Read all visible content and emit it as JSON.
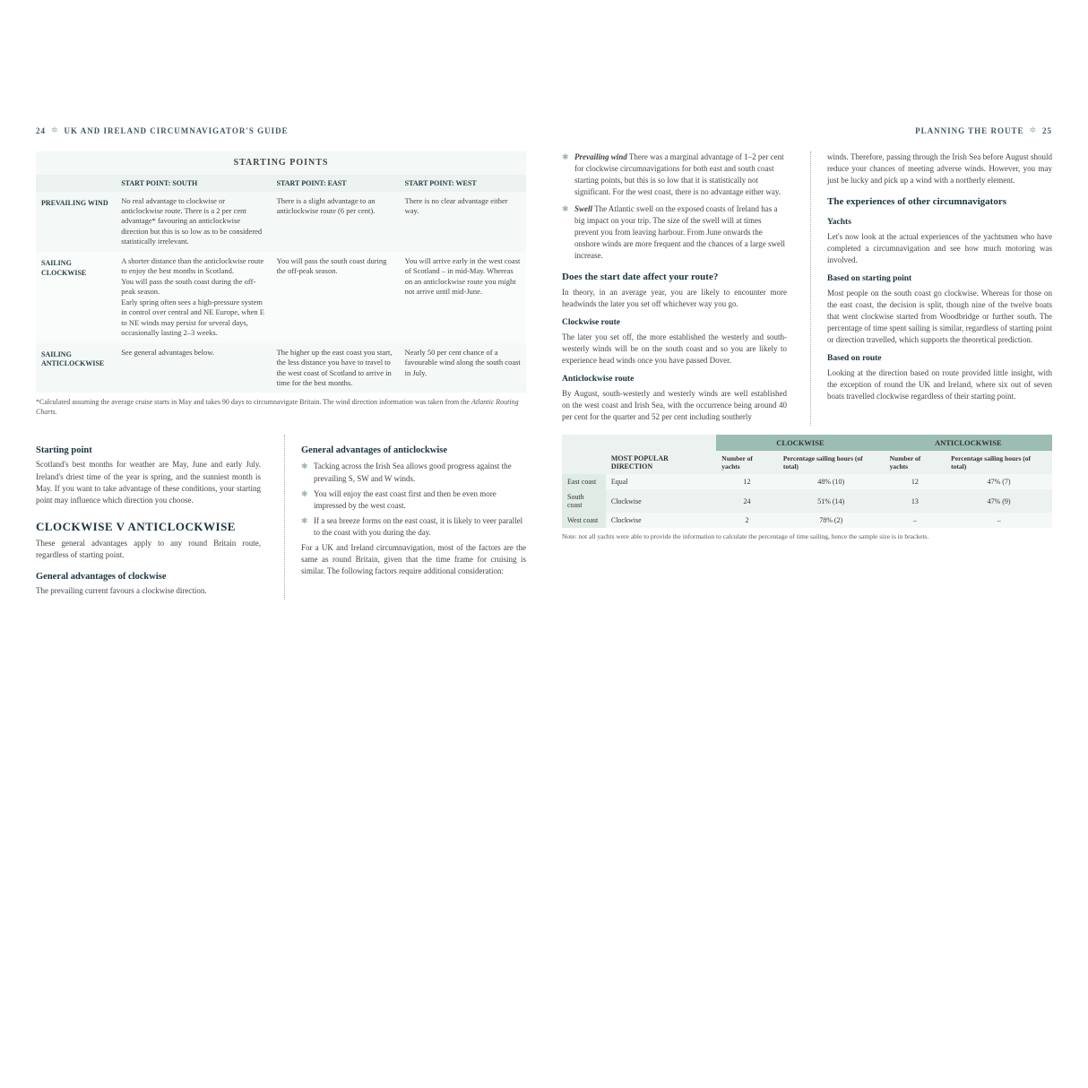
{
  "leftPage": {
    "pageNum": "24",
    "runTitle": "UK AND IRELAND CIRCUMNAVIGATOR'S GUIDE",
    "table1": {
      "banner": "STARTING POINTS",
      "cols": [
        "",
        "START POINT: SOUTH",
        "START POINT: EAST",
        "START POINT: WEST"
      ],
      "rows": [
        {
          "h": "PREVAILING WIND",
          "c": [
            "No real advantage to clockwise or anticlockwise route. There is a 2 per cent advantage* favouring an anticlockwise direction but this is so low as to be considered statistically irrelevant.",
            "There is a slight advantage to an anticlockwise route (6 per cent).",
            "There is no clear advantage either way."
          ]
        },
        {
          "h": "SAILING CLOCKWISE",
          "c": [
            "A shorter distance than the anticlockwise route to enjoy the best months in Scotland.\nYou will pass the south coast during the off-peak season.\nEarly spring often sees a high-pressure system in control over central and NE Europe, when E to NE winds may persist for several days, occasionally lasting 2–3 weeks.",
            "You will pass the south coast during the off-peak season.",
            "You will arrive early in the west coast of Scotland – in mid-May. Whereas on an anticlockwise route you might not arrive until mid-June."
          ]
        },
        {
          "h": "SAILING ANTICLOCKWISE",
          "c": [
            "See general advantages below.",
            "The higher up the east coast you start, the less distance you have to travel to the west coast of Scotland to arrive in time for the best months.",
            "Nearly 50 per cent chance of a favourable wind along the south coast in July."
          ]
        }
      ]
    },
    "footnote": "*Calculated assuming the average cruise starts in May and takes 90 days to circumnavigate Britain. The wind direction information was taken from the ",
    "footnoteItalic": "Atlantic Routing Charts.",
    "colL": {
      "h1": "Starting point",
      "p1": "Scotland's best months for weather are May, June and early July. Ireland's driest time of the year is spring, and the sunniest month is May. If you want to take advantage of these conditions, your starting point may influence which direction you choose.",
      "h2": "CLOCKWISE V ANTICLOCKWISE",
      "p2": "These general advantages apply to any round Britain route, regardless of starting point.",
      "h3": "General advantages of clockwise",
      "p3": "The prevailing current favours a clockwise direction."
    },
    "colR": {
      "h1": "General advantages of anticlockwise",
      "bullets": [
        "Tacking across the Irish Sea allows good progress against the prevailing S, SW and W winds.",
        "You will enjoy the east coast first and then be even more impressed by the west coast.",
        "If a sea breeze forms on the east coast, it is likely to veer parallel to the coast with you during the day."
      ],
      "p1": "For a UK and Ireland circumnavigation, most of the factors are the same as round Britain, given that the time frame for cruising is similar. The following factors require additional consideration:"
    }
  },
  "rightPage": {
    "pageNum": "25",
    "runTitle": "PLANNING THE ROUTE",
    "colL": {
      "d1": {
        "b": "Prevailing wind",
        "t": "There was a marginal advantage of 1–2 per cent for clockwise circumnavigations for both east and south coast starting points, but this is so low that it is statistically not significant. For the west coast, there is no advantage either way."
      },
      "d2": {
        "b": "Swell",
        "t": "The Atlantic swell on the exposed coasts of Ireland has a big impact on your trip. The size of the swell will at times prevent you from leaving harbour. From June onwards the onshore winds are more frequent and the chances of a large swell increase."
      },
      "h1": "Does the start date affect your route?",
      "p1": "In theory, in an average year, you are likely to encounter more headwinds the later you set off whichever way you go.",
      "h2": "Clockwise route",
      "p2": "The later you set off, the more established the westerly and south-westerly winds will be on the south coast and so you are likely to experience head winds once you have passed Dover.",
      "h3": "Anticlockwise route",
      "p3": "By August, south-westerly and westerly winds are well established on the west coast and Irish Sea, with the occurrence being around 40 per cent for the quarter and 52 per cent including southerly"
    },
    "colR": {
      "p0": "winds. Therefore, passing through the Irish Sea before August should reduce your chances of meeting adverse winds. However, you may just be lucky and pick up a wind with a northerly element.",
      "h1": "The experiences of other circumnavigators",
      "sub1": "Yachts",
      "p1": "Let's now look at the actual experiences of the yachtsmen who have completed a circumnavigation and see how much motoring was involved.",
      "h2": "Based on starting point",
      "p2": "Most people on the south coast go clockwise. Whereas for those on the east coast, the decision is split, though nine of the twelve boats that went clockwise started from Woodbridge or further south. The percentage of time spent sailing is similar, regardless of starting point or direction travelled, which supports the theoretical prediction.",
      "h3": "Based on route",
      "p3": "Looking at the direction based on route provided little insight, with the exception of round the UK and Ireland, where six out of seven boats travelled clockwise regardless of their starting point."
    },
    "table2": {
      "h1": [
        "",
        "MOST POPULAR DIRECTION",
        "CLOCKWISE",
        "ANTICLOCKWISE"
      ],
      "h2": [
        "Number of yachts",
        "Percentage sailing hours (of total)",
        "Number of yachts",
        "Percentage sailing hours (of total)"
      ],
      "rows": [
        [
          "East coast",
          "Equal",
          "12",
          "48%  (10)",
          "12",
          "47% (7)"
        ],
        [
          "South coast",
          "Clockwise",
          "24",
          "51%  (14)",
          "13",
          "47% (9)"
        ],
        [
          "West coast",
          "Clockwise",
          "2",
          "78%  (2)",
          "–",
          "–"
        ]
      ]
    },
    "note2": "Note: not all yachts were able to provide the information to calculate the percentage of time sailing, hence the sample size is in brackets."
  }
}
